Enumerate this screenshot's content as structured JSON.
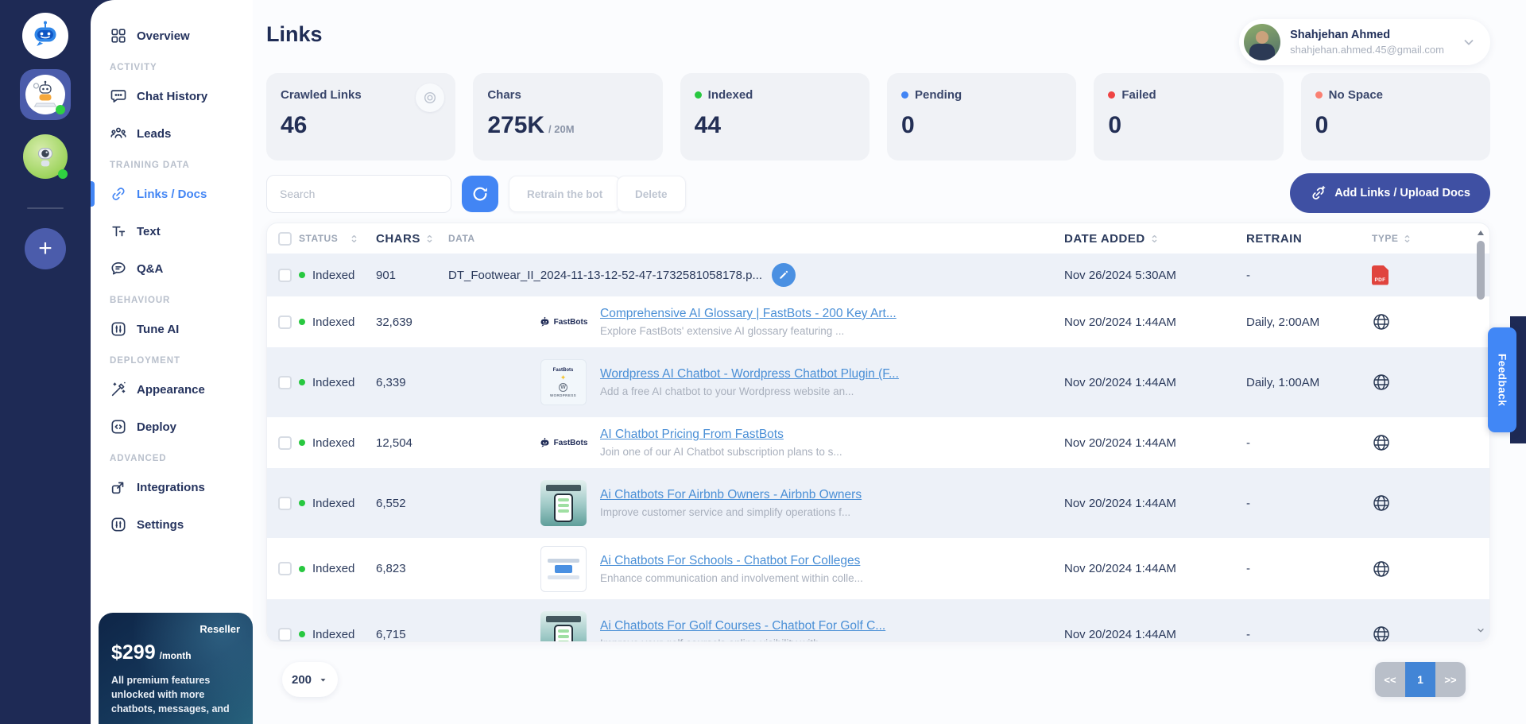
{
  "palette": {
    "rail_bg": "#1e2a55",
    "accent_blue": "#4285f4",
    "add_button": "#3f50a3",
    "link_blue": "#4a8fd6",
    "row_alt": "#edf1f8",
    "pdf_red": "#e0443e",
    "pager_active": "#4285d6",
    "online_green": "#2fd141"
  },
  "sidebar": {
    "sections": [
      {
        "label": null,
        "items": [
          {
            "slug": "overview",
            "label": "Overview",
            "icon": "grid",
            "active": false
          }
        ]
      },
      {
        "label": "ACTIVITY",
        "items": [
          {
            "slug": "chat-history",
            "label": "Chat History",
            "icon": "chat",
            "active": false
          },
          {
            "slug": "leads",
            "label": "Leads",
            "icon": "leads",
            "active": false
          }
        ]
      },
      {
        "label": "TRAINING DATA",
        "items": [
          {
            "slug": "links-docs",
            "label": "Links / Docs",
            "icon": "link",
            "active": true
          },
          {
            "slug": "text",
            "label": "Text",
            "icon": "text",
            "active": false
          },
          {
            "slug": "qa",
            "label": "Q&A",
            "icon": "qa",
            "active": false
          }
        ]
      },
      {
        "label": "BEHAVIOUR",
        "items": [
          {
            "slug": "tune-ai",
            "label": "Tune AI",
            "icon": "tune",
            "active": false
          }
        ]
      },
      {
        "label": "DEPLOYMENT",
        "items": [
          {
            "slug": "appearance",
            "label": "Appearance",
            "icon": "wand",
            "active": false
          },
          {
            "slug": "deploy",
            "label": "Deploy",
            "icon": "deploy",
            "active": false
          }
        ]
      },
      {
        "label": "ADVANCED",
        "items": [
          {
            "slug": "integrations",
            "label": "Integrations",
            "icon": "integrations",
            "active": false
          },
          {
            "slug": "settings",
            "label": "Settings",
            "icon": "settings",
            "active": false
          }
        ]
      }
    ],
    "plan_card": {
      "badge": "Reseller",
      "price": "$299",
      "period": "/month",
      "description": "All premium features unlocked with more chatbots, messages, and"
    }
  },
  "header": {
    "title": "Links",
    "user": {
      "name": "Shahjehan Ahmed",
      "email": "shahjehan.ahmed.45@gmail.com"
    }
  },
  "stats": [
    {
      "slug": "crawled-links",
      "label": "Crawled Links",
      "value": "46",
      "icon": "target"
    },
    {
      "slug": "chars",
      "label": "Chars",
      "value": "275K",
      "suffix": "/ 20M"
    },
    {
      "slug": "indexed",
      "label": "Indexed",
      "value": "44",
      "dot": "#28c840"
    },
    {
      "slug": "pending",
      "label": "Pending",
      "value": "0",
      "dot": "#4285f4"
    },
    {
      "slug": "failed",
      "label": "Failed",
      "value": "0",
      "dot": "#ef4444"
    },
    {
      "slug": "no-space",
      "label": "No Space",
      "value": "0",
      "dot": "#fa8072"
    }
  ],
  "toolbar": {
    "search_placeholder": "Search",
    "retrain_label": "Retrain the bot",
    "delete_label": "Delete",
    "add_label": "Add Links / Upload Docs"
  },
  "table": {
    "favicon_label": "FastBots",
    "pdf_label": "PDF",
    "wordpress_thumb": {
      "brand": "FastBots",
      "word": "WORDPRESS"
    },
    "columns": [
      {
        "key": "check",
        "label": "",
        "sortable": false
      },
      {
        "key": "status",
        "label": "STATUS",
        "sortable": true
      },
      {
        "key": "chars",
        "label": "CHARS",
        "sortable": true
      },
      {
        "key": "data",
        "label": "DATA",
        "sortable": false
      },
      {
        "key": "date",
        "label": "DATE ADDED",
        "sortable": true
      },
      {
        "key": "retrain",
        "label": "RETRAIN",
        "sortable": false
      },
      {
        "key": "type",
        "label": "TYPE",
        "sortable": true
      }
    ],
    "rows": [
      {
        "status": "Indexed",
        "chars": "901",
        "kind": "file",
        "editable": true,
        "title": "DT_Footwear_II_2024-11-13-12-52-47-1732581058178.p...",
        "desc": null,
        "date": "Nov 26/2024 5:30AM",
        "retrain": "-",
        "type": "pdf"
      },
      {
        "status": "Indexed",
        "chars": "32,639",
        "kind": "favicon",
        "title": "Comprehensive AI Glossary | FastBots - 200 Key Art...",
        "desc": "Explore FastBots' extensive AI glossary featuring ...",
        "date": "Nov 20/2024 1:44AM",
        "retrain": "Daily, 2:00AM",
        "type": "web"
      },
      {
        "status": "Indexed",
        "chars": "6,339",
        "kind": "thumb-wordpress",
        "title": "Wordpress AI Chatbot - Wordpress Chatbot Plugin (F...",
        "desc": "Add a free AI chatbot to your Wordpress website an...",
        "date": "Nov 20/2024 1:44AM",
        "retrain": "Daily, 1:00AM",
        "type": "web"
      },
      {
        "status": "Indexed",
        "chars": "12,504",
        "kind": "favicon",
        "title": "AI Chatbot Pricing From FastBots",
        "desc": "Join one of our AI Chatbot subscription plans to s...",
        "date": "Nov 20/2024 1:44AM",
        "retrain": "-",
        "type": "web"
      },
      {
        "status": "Indexed",
        "chars": "6,552",
        "kind": "thumb-phone",
        "title": "Ai Chatbots For Airbnb Owners - Airbnb Owners",
        "desc": "Improve customer service and simplify operations f...",
        "date": "Nov 20/2024 1:44AM",
        "retrain": "-",
        "type": "web"
      },
      {
        "status": "Indexed",
        "chars": "6,823",
        "kind": "thumb-page",
        "title": "Ai Chatbots For Schools - Chatbot For Colleges",
        "desc": "Enhance communication and involvement within colle...",
        "date": "Nov 20/2024 1:44AM",
        "retrain": "-",
        "type": "web"
      },
      {
        "status": "Indexed",
        "chars": "6,715",
        "kind": "thumb-phone",
        "title": "Ai Chatbots For Golf Courses - Chatbot For Golf C...",
        "desc": "Improve your golf course's online visibility with ...",
        "date": "Nov 20/2024 1:44AM",
        "retrain": "-",
        "type": "web"
      }
    ]
  },
  "pagination": {
    "page_size": "200",
    "prev_label": "<<",
    "page": "1",
    "next_label": ">>"
  },
  "feedback_label": "Feedback"
}
